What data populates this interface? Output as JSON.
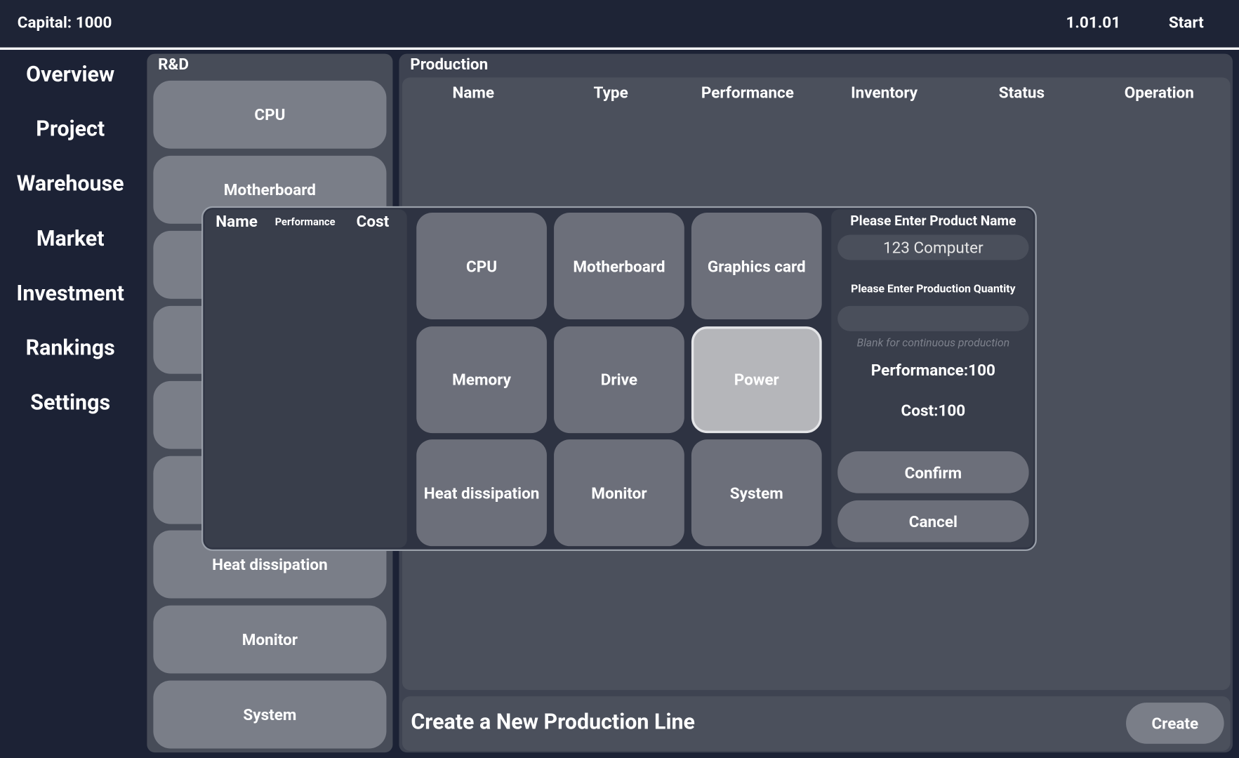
{
  "top_bar": {
    "capital": "Capital: 1000",
    "date": "1.01.01",
    "start": "Start"
  },
  "nav": [
    "Overview",
    "Project",
    "Warehouse",
    "Market",
    "Investment",
    "Rankings",
    "Settings"
  ],
  "rd": {
    "title": "R&D",
    "items": [
      "CPU",
      "Motherboard",
      "Heat dissipation",
      "Monitor",
      "System"
    ]
  },
  "production": {
    "title": "Production",
    "headers": [
      "Name",
      "Type",
      "Performance",
      "Inventory",
      "Status",
      "Operation"
    ],
    "create_line": "Create a New Production Line",
    "create_button": "Create"
  },
  "dialog": {
    "list_headers": [
      "Name",
      "Performance",
      "Cost"
    ],
    "components": [
      "CPU",
      "Motherboard",
      "Graphics card",
      "Memory",
      "Drive",
      "Power",
      "Heat dissipation",
      "Monitor",
      "System"
    ],
    "product_name_label": "Please Enter Product Name",
    "product_name_value": "123 Computer",
    "quantity_label": "Please Enter Production Quantity",
    "quantity_hint": "Blank for continuous production",
    "performance": "Performance:100",
    "cost": "Cost:100",
    "confirm": "Confirm",
    "cancel": "Cancel"
  }
}
